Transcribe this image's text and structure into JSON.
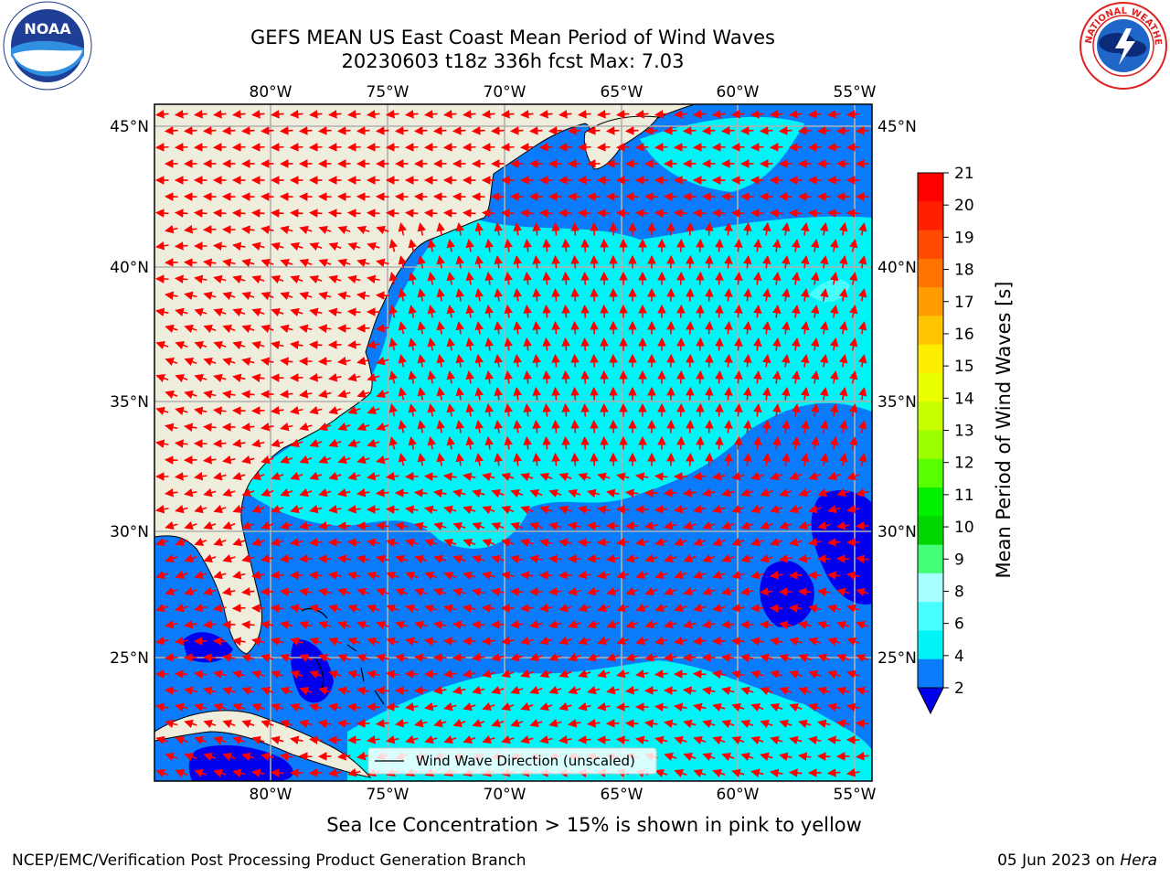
{
  "header": {
    "title_line1": "GEFS MEAN US East Coast Mean Period of Wind Waves",
    "title_line2": "20230603 t18z 336h fcst   Max: 7.03"
  },
  "logos": {
    "left_name": "noaa-logo",
    "left_text": "NOAA",
    "right_name": "nws-logo",
    "right_text": "NATIONAL WEATHER SERVICE"
  },
  "map": {
    "lon_ticks": [
      "80°W",
      "75°W",
      "70°W",
      "65°W",
      "60°W",
      "55°W"
    ],
    "lat_ticks": [
      "45°N",
      "40°N",
      "35°N",
      "30°N",
      "25°N"
    ],
    "colors": {
      "land": "#efeddc",
      "ocean_2_4": "#0a7cfb",
      "ocean_4_6": "#00f3f5",
      "ocean_6_8": "#47ffff",
      "ocean_lt2": "#0000ee",
      "arrows": "#ff0000",
      "grid": "#b0b0b0"
    },
    "legend_label": "Wind Wave Direction (unscaled)"
  },
  "colorbar": {
    "label": "Mean Period of Wind Waves [s]",
    "ticks": [
      "21",
      "20",
      "19",
      "18",
      "17",
      "16",
      "15",
      "14",
      "13",
      "12",
      "11",
      "10",
      "9",
      "8",
      "6",
      "4",
      "2"
    ],
    "colors": [
      "#ff0000",
      "#ff2000",
      "#ff4a00",
      "#ff7300",
      "#ff9c00",
      "#ffc500",
      "#ffee00",
      "#eaff00",
      "#c8ff00",
      "#9bff00",
      "#58ff00",
      "#00f000",
      "#00d700",
      "#45ff78",
      "#a8ffff",
      "#47ffff",
      "#00f3f5",
      "#0a7cfb"
    ],
    "extend_color": "#0000ee"
  },
  "footer": {
    "sea_ice_note": "Sea Ice Concentration > 15% is shown in pink to yellow",
    "branch": "NCEP/EMC/Verification Post Processing Product Generation Branch",
    "date": "05 Jun 2023 on ",
    "host": "Hera"
  }
}
